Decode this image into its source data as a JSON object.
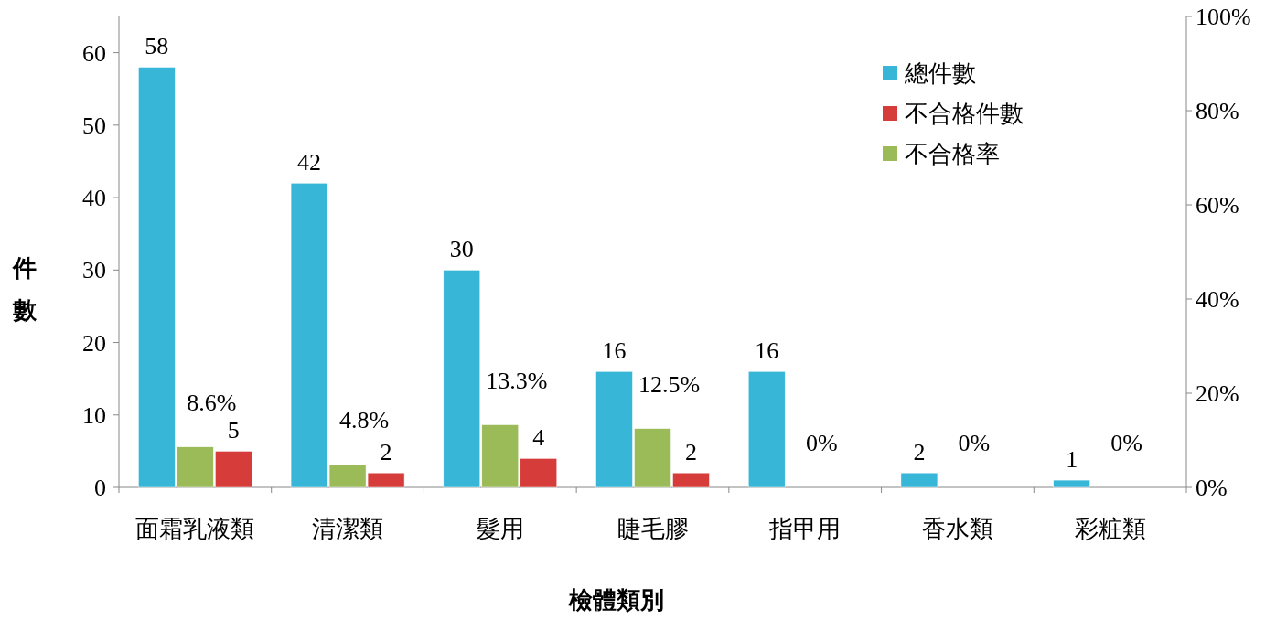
{
  "chart_data": {
    "type": "bar",
    "xlabel": "檢體類別",
    "ylabel": "件數",
    "categories": [
      "面霜乳液類",
      "清潔類",
      "髮用",
      "睫毛膠",
      "指甲用",
      "香水類",
      "彩粧類"
    ],
    "series": [
      {
        "name": "總件數",
        "color": "#38b6d8",
        "values": [
          58,
          42,
          30,
          16,
          16,
          2,
          1
        ],
        "value_labels": [
          "58",
          "42",
          "30",
          "16",
          "16",
          "2",
          "1"
        ]
      },
      {
        "name": "不合格件數",
        "color": "#d63c3a",
        "values": [
          5,
          2,
          4,
          2,
          0,
          0,
          0
        ],
        "value_labels": [
          "5",
          "2",
          "4",
          "2",
          null,
          null,
          null
        ]
      },
      {
        "name": "不合格率",
        "color": "#9bbb59",
        "axis": "y2",
        "values": [
          8.6,
          4.8,
          13.3,
          12.5,
          0,
          0,
          0
        ],
        "value_labels": [
          "8.6%",
          "4.8%",
          "13.3%",
          "12.5%",
          "0%",
          "0%",
          "0%"
        ]
      }
    ],
    "ylim": [
      0,
      65
    ],
    "yticks": [
      0,
      10,
      20,
      30,
      40,
      50,
      60
    ],
    "y2lim": [
      0,
      100
    ],
    "y2ticks": [
      {
        "value": 0,
        "label": "0%"
      },
      {
        "value": 20,
        "label": "20%"
      },
      {
        "value": 40,
        "label": "40%"
      },
      {
        "value": 60,
        "label": "60%"
      },
      {
        "value": 80,
        "label": "80%"
      },
      {
        "value": 100,
        "label": "100%"
      }
    ],
    "legend": "top right",
    "grid": false
  }
}
